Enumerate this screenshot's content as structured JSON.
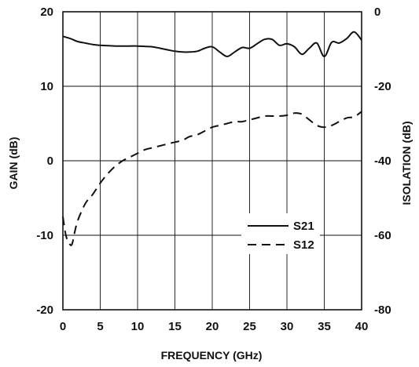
{
  "chart_data": {
    "type": "line",
    "xlabel": "FREQUENCY (GHz)",
    "ylabel": "GAIN (dB)",
    "y2label": "ISOLATION (dB)",
    "xlim": [
      0,
      40
    ],
    "ylim": [
      -20,
      20
    ],
    "y2lim": [
      -80,
      0
    ],
    "x_ticks": [
      "0",
      "5",
      "10",
      "15",
      "20",
      "25",
      "30",
      "35",
      "40"
    ],
    "y_ticks": [
      "-20",
      "-10",
      "0",
      "10",
      "20"
    ],
    "y2_ticks": [
      "-80",
      "-60",
      "-40",
      "-20",
      "0"
    ],
    "grid": true,
    "legend_position": "lower-right",
    "series": [
      {
        "name": "S21",
        "axis": "left",
        "style": "solid",
        "x": [
          0,
          1,
          2,
          3,
          4,
          5,
          6,
          7,
          8,
          9,
          10,
          11,
          12,
          13,
          14,
          15,
          16,
          17,
          18,
          19,
          20,
          21,
          22,
          23,
          24,
          25,
          26,
          27,
          28,
          29,
          30,
          31,
          32,
          33,
          34,
          35,
          36,
          37,
          38,
          39,
          40
        ],
        "values": [
          16.7,
          16.4,
          16.0,
          15.8,
          15.6,
          15.5,
          15.45,
          15.4,
          15.4,
          15.4,
          15.4,
          15.35,
          15.3,
          15.1,
          14.9,
          14.7,
          14.6,
          14.6,
          14.7,
          15.1,
          15.3,
          14.6,
          14.0,
          14.6,
          15.2,
          15.1,
          15.7,
          16.3,
          16.3,
          15.5,
          15.7,
          15.3,
          14.3,
          15.1,
          15.8,
          14.0,
          15.9,
          15.8,
          16.4,
          17.3,
          16.2
        ]
      },
      {
        "name": "S12",
        "axis": "right",
        "style": "dashed",
        "x": [
          0,
          0.4,
          0.8,
          1.2,
          1.6,
          2,
          3,
          4,
          5,
          6,
          7,
          8,
          9,
          10,
          11,
          12,
          13,
          14,
          15,
          16,
          17,
          18,
          19,
          20,
          21,
          22,
          23,
          24,
          25,
          26,
          27,
          28,
          29,
          30,
          31,
          32,
          33,
          34,
          35,
          36,
          37,
          38,
          39,
          40
        ],
        "values": [
          -55,
          -60,
          -62,
          -62.5,
          -59,
          -56,
          -51.5,
          -49,
          -46,
          -43.5,
          -41.5,
          -40,
          -39,
          -38,
          -37,
          -36.5,
          -36,
          -35.5,
          -35,
          -34.5,
          -33.5,
          -33,
          -32,
          -31,
          -30.5,
          -30,
          -29.5,
          -29.5,
          -29,
          -28.5,
          -28,
          -28,
          -28,
          -27.8,
          -27.2,
          -27.5,
          -29,
          -30.5,
          -31,
          -30.5,
          -29.5,
          -28.5,
          -28.2,
          -26.8
        ]
      }
    ]
  }
}
